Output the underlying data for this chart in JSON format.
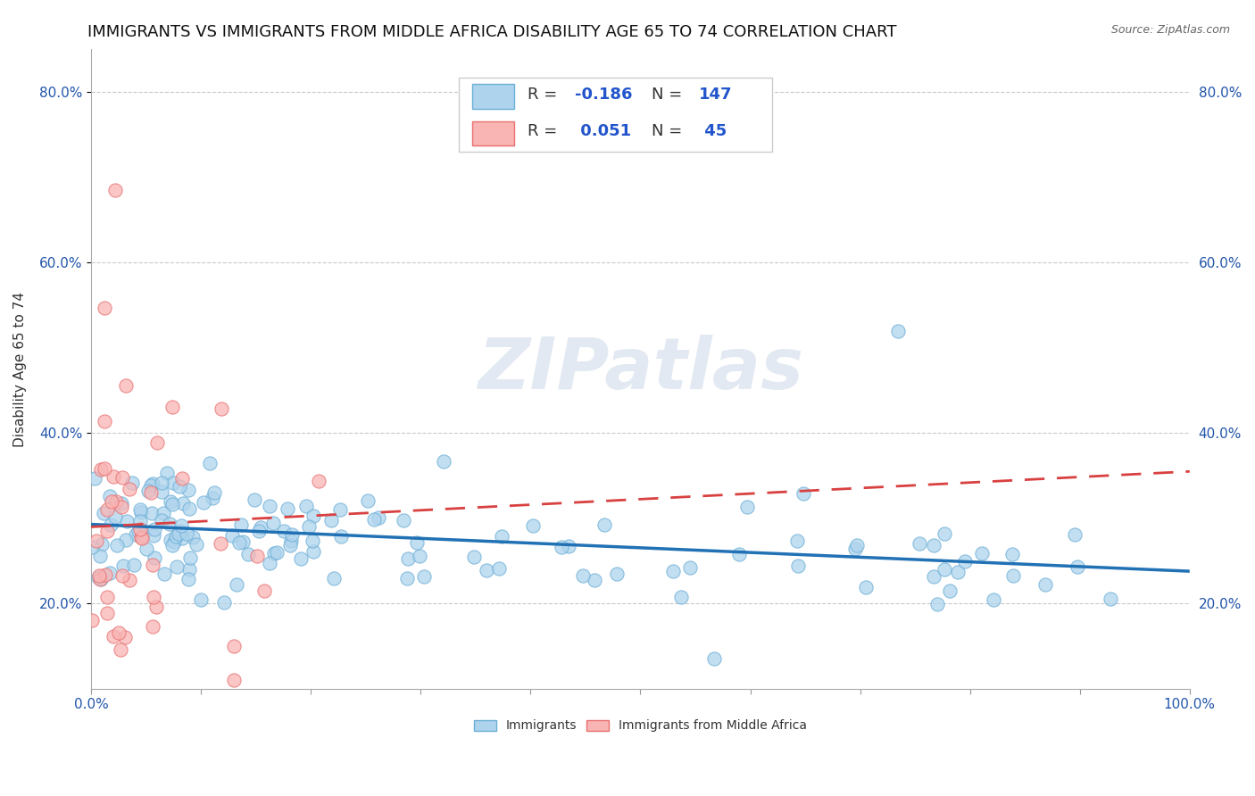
{
  "title": "IMMIGRANTS VS IMMIGRANTS FROM MIDDLE AFRICA DISABILITY AGE 65 TO 74 CORRELATION CHART",
  "source_text": "Source: ZipAtlas.com",
  "ylabel": "Disability Age 65 to 74",
  "x_min": 0.0,
  "x_max": 1.0,
  "y_min": 0.1,
  "y_max": 0.85,
  "y_ticks": [
    0.2,
    0.4,
    0.6,
    0.8
  ],
  "y_tick_labels": [
    "20.0%",
    "40.0%",
    "60.0%",
    "80.0%"
  ],
  "x_ticks": [
    0.0,
    0.1,
    0.2,
    0.3,
    0.4,
    0.5,
    0.6,
    0.7,
    0.8,
    0.9,
    1.0
  ],
  "x_tick_labels": [
    "0.0%",
    "",
    "",
    "",
    "",
    "",
    "",
    "",
    "",
    "",
    "100.0%"
  ],
  "background_color": "#ffffff",
  "grid_color": "#bbbbbb",
  "watermark_text": "ZIPatlas",
  "series1_label": "Immigrants",
  "series1_dot_fill": "#aed4ed",
  "series1_dot_edge": "#6baed6",
  "series1_R": -0.186,
  "series1_N": 147,
  "series1_trend_color": "#2171b5",
  "series1_trend_y0": 0.293,
  "series1_trend_y1": 0.238,
  "series2_label": "Immigrants from Middle Africa",
  "series2_dot_fill": "#f9b4b4",
  "series2_dot_edge": "#e87070",
  "series2_R": 0.051,
  "series2_N": 45,
  "series2_trend_color": "#d94040",
  "series2_trend_y0": 0.29,
  "series2_trend_y1": 0.355,
  "title_fontsize": 13,
  "axis_label_fontsize": 11,
  "tick_fontsize": 11,
  "legend_fontsize": 13,
  "source_fontsize": 9
}
